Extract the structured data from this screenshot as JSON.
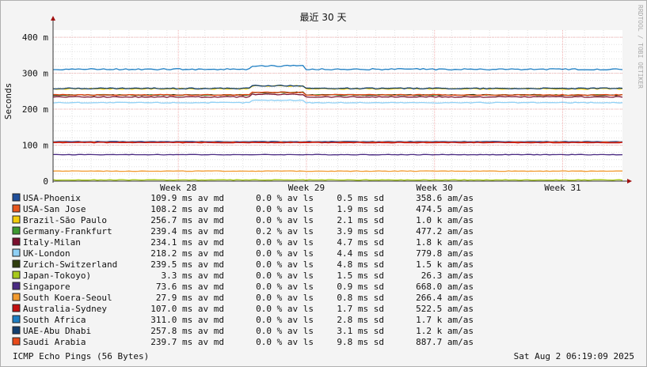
{
  "chart_data": {
    "type": "line",
    "title": "最近 30 天",
    "ylabel": "Seconds",
    "vertical_credit": "RRDTOOL / TOBI OETIKER",
    "y_ticks": [
      {
        "value": 0,
        "label": "0"
      },
      {
        "value": 0.1,
        "label": "100 m"
      },
      {
        "value": 0.2,
        "label": "200 m"
      },
      {
        "value": 0.3,
        "label": "300 m"
      },
      {
        "value": 0.4,
        "label": "400 m"
      }
    ],
    "ylim": [
      0,
      0.42
    ],
    "x_ticks": [
      {
        "pos": 0.22,
        "label": "Week 28"
      },
      {
        "pos": 0.445,
        "label": "Week 29"
      },
      {
        "pos": 0.67,
        "label": "Week 30"
      },
      {
        "pos": 0.895,
        "label": "Week 31"
      }
    ],
    "grid": true,
    "legend_position": "bottom",
    "series": [
      {
        "name": "USA-Phoenix",
        "color": "#1f4e9a",
        "avg": "109.9 ms av md",
        "loss": "0.0 % av ls",
        "sd": "0.5 ms sd",
        "amas": "358.6   am/as",
        "level": 0.1099
      },
      {
        "name": "USA-San Jose",
        "color": "#e8571e",
        "avg": "108.2 ms av md",
        "loss": "0.0 % av ls",
        "sd": "1.9 ms sd",
        "amas": "474.5   am/as",
        "level": 0.1082
      },
      {
        "name": "Brazil-São Paulo",
        "color": "#f2cc0c",
        "avg": "256.7 ms av md",
        "loss": "0.0 % av ls",
        "sd": "2.1 ms sd",
        "amas": "1.0 k am/as",
        "level": 0.2567
      },
      {
        "name": "Germany-Frankfurt",
        "color": "#3d9a32",
        "avg": "239.4 ms av md",
        "loss": "0.2 % av ls",
        "sd": "3.9 ms sd",
        "amas": "477.2   am/as",
        "level": 0.2394
      },
      {
        "name": "Italy-Milan",
        "color": "#7a0f2e",
        "avg": "234.1 ms av md",
        "loss": "0.0 % av ls",
        "sd": "4.7 ms sd",
        "amas": "1.8 k am/as",
        "level": 0.2341
      },
      {
        "name": "UK-London",
        "color": "#8fd0f5",
        "avg": "218.2 ms av md",
        "loss": "0.0 % av ls",
        "sd": "4.4 ms sd",
        "amas": "779.8   am/as",
        "level": 0.2182
      },
      {
        "name": "Zurich-Switzerland",
        "color": "#2f3d0e",
        "avg": "239.5 ms av md",
        "loss": "0.0 % av ls",
        "sd": "4.8 ms sd",
        "amas": "1.5 k am/as",
        "level": 0.2395
      },
      {
        "name": "Japan-Tokoyo)",
        "color": "#a7c91a",
        "avg": "3.3 ms av md",
        "loss": "0.0 % av ls",
        "sd": "1.5 ms sd",
        "amas": "26.3   am/as",
        "level": 0.0033
      },
      {
        "name": "Singapore",
        "color": "#4a2a82",
        "avg": "73.6 ms av md",
        "loss": "0.0 % av ls",
        "sd": "0.9 ms sd",
        "amas": "668.0   am/as",
        "level": 0.0736
      },
      {
        "name": "South Koera-Seoul",
        "color": "#f29b30",
        "avg": "27.9 ms av md",
        "loss": "0.0 % av ls",
        "sd": "0.8 ms sd",
        "amas": "266.4   am/as",
        "level": 0.0279
      },
      {
        "name": "Australia-Sydney",
        "color": "#c41010",
        "avg": "107.0 ms av md",
        "loss": "0.0 % av ls",
        "sd": "1.7 ms sd",
        "amas": "522.5   am/as",
        "level": 0.107
      },
      {
        "name": "South Africa",
        "color": "#1e7fc4",
        "avg": "311.0 ms av md",
        "loss": "0.0 % av ls",
        "sd": "2.8 ms sd",
        "amas": "1.7 k am/as",
        "level": 0.311
      },
      {
        "name": "UAE-Abu Dhabi",
        "color": "#123f70",
        "avg": "257.8 ms av md",
        "loss": "0.0 % av ls",
        "sd": "3.1 ms sd",
        "amas": "1.2 k am/as",
        "level": 0.2578
      },
      {
        "name": "Saudi Arabia",
        "color": "#e84a1a",
        "avg": "239.7 ms av md",
        "loss": "0.0 % av ls",
        "sd": "9.8 ms sd",
        "amas": "887.7   am/as",
        "level": 0.2397
      }
    ],
    "footer_left": "ICMP Echo Pings (56 Bytes)",
    "footer_right": "Sat Aug  2 06:19:09 2025"
  }
}
